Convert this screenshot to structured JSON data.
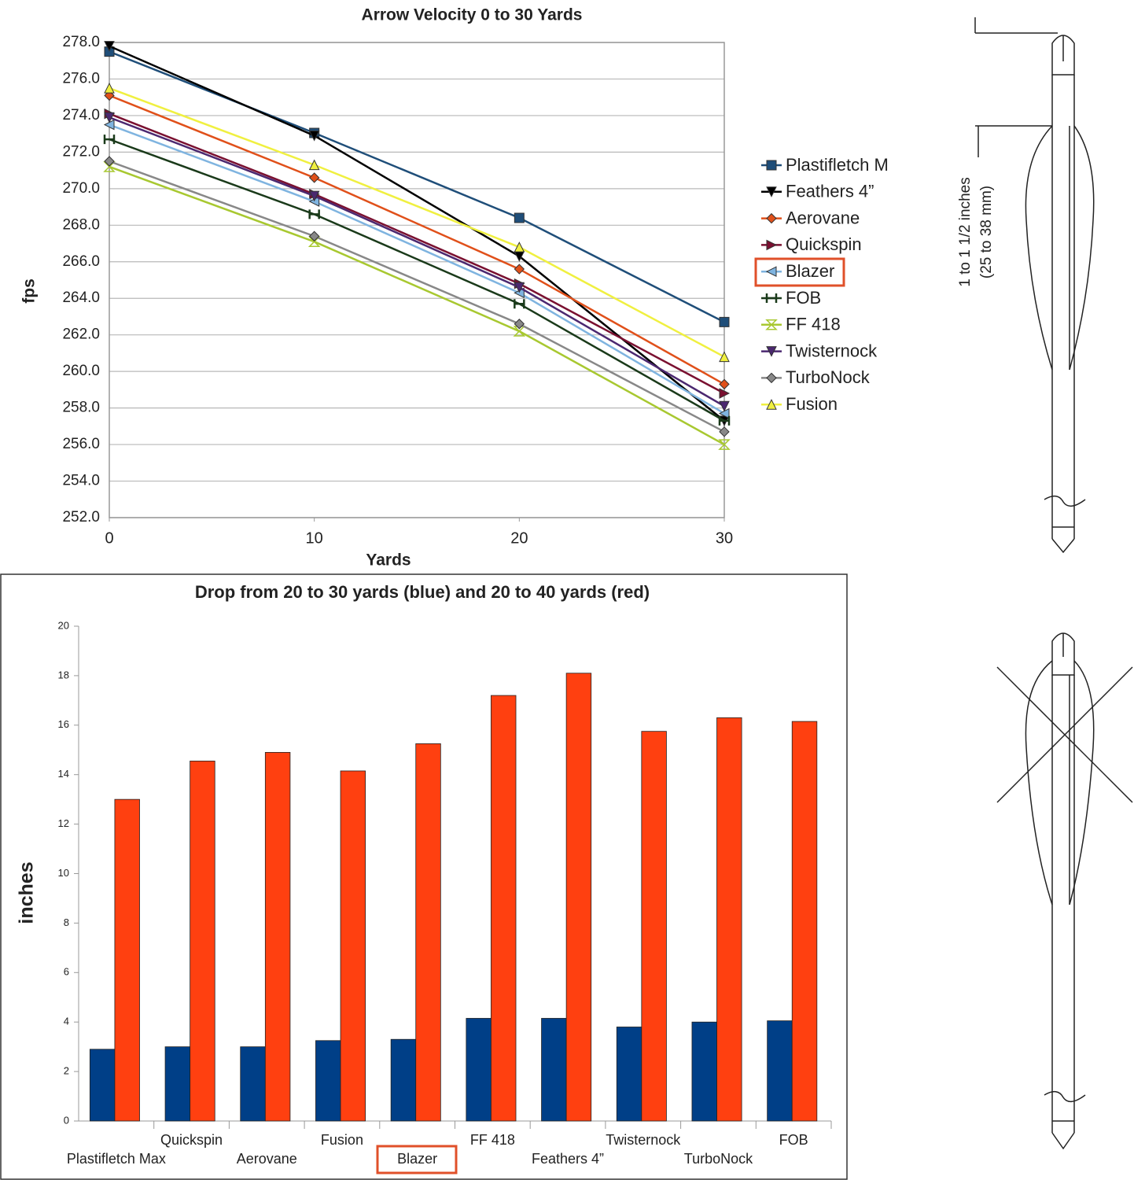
{
  "chart_data": [
    {
      "type": "line",
      "title": "Arrow Velocity  0 to 30 Yards",
      "x_label": "Yards",
      "y_label": "fps",
      "x": [
        0,
        10,
        20,
        30
      ],
      "xlim": [
        0,
        30
      ],
      "xticks": [
        0,
        10,
        20,
        30
      ],
      "ylim": [
        252,
        278
      ],
      "yticks": [
        {
          "value": 252,
          "label": "252.0"
        },
        {
          "value": 254,
          "label": "254.0"
        },
        {
          "value": 256,
          "label": "256.0"
        },
        {
          "value": 258,
          "label": "258.0"
        },
        {
          "value": 260,
          "label": "260.0"
        },
        {
          "value": 262,
          "label": "262.0"
        },
        {
          "value": 264,
          "label": "264.0"
        },
        {
          "value": 266,
          "label": "266.0"
        },
        {
          "value": 268,
          "label": "268.0"
        },
        {
          "value": 270,
          "label": "270.0"
        },
        {
          "value": 272,
          "label": "272.0"
        },
        {
          "value": 274,
          "label": "274.0"
        },
        {
          "value": 276,
          "label": "276.0"
        },
        {
          "value": 278,
          "label": "278.0"
        }
      ],
      "grid": true,
      "legend": "right",
      "series": [
        {
          "name": "Plastifletch M",
          "color": "#1f4e79",
          "values": [
            277.5,
            273.05,
            268.4,
            262.7
          ]
        },
        {
          "name": "Feathers 4”",
          "color": "#000000",
          "values": [
            277.8,
            272.9,
            266.3,
            257.3
          ]
        },
        {
          "name": "Aerovane",
          "color": "#e0501a",
          "values": [
            275.1,
            270.6,
            265.6,
            259.3
          ]
        },
        {
          "name": "Quickspin",
          "color": "#7a1030",
          "values": [
            274.1,
            269.7,
            264.8,
            258.8
          ]
        },
        {
          "name": "Blazer",
          "color": "#7fb4e0",
          "values": [
            273.5,
            269.3,
            264.3,
            257.7
          ]
        },
        {
          "name": "FOB",
          "color": "#1a3a1a",
          "values": [
            272.7,
            268.6,
            263.7,
            257.3
          ]
        },
        {
          "name": "FF 418",
          "color": "#a8c830",
          "values": [
            271.2,
            267.1,
            262.2,
            256.0
          ]
        },
        {
          "name": "Twisternock",
          "color": "#4b2870",
          "values": [
            273.9,
            269.6,
            264.6,
            258.1
          ]
        },
        {
          "name": "TurboNock",
          "color": "#888888",
          "values": [
            271.5,
            267.4,
            262.6,
            256.7
          ]
        },
        {
          "name": "Fusion",
          "color": "#f0f040",
          "values": [
            275.5,
            271.3,
            266.8,
            260.8
          ]
        }
      ]
    },
    {
      "type": "bar",
      "title": "Drop from 20 to 30 yards (blue) and 20 to 40 yards (red)",
      "y_label": "inches",
      "categories": [
        "Plastifletch Max",
        "Quickspin",
        "Aerovane",
        "Fusion",
        "Blazer",
        "FF 418",
        "Feathers 4”",
        "Twisternock",
        "TurboNock",
        "FOB"
      ],
      "ylim": [
        0,
        20
      ],
      "yticks": [
        0,
        2,
        4,
        6,
        8,
        10,
        12,
        14,
        16,
        18,
        20
      ],
      "grid": false,
      "series": [
        {
          "color": "#003f87",
          "values": [
            2.9,
            3.0,
            3.0,
            3.25,
            3.3,
            4.15,
            4.15,
            3.8,
            4.0,
            4.05
          ]
        },
        {
          "color": "#ff4010",
          "values": [
            13.0,
            14.55,
            14.9,
            14.15,
            15.25,
            17.2,
            18.1,
            15.75,
            16.3,
            16.15
          ]
        }
      ]
    }
  ],
  "diagram": {
    "label": [
      "1 to 1 1/2 inches",
      "(25 to 38 mm)"
    ]
  }
}
